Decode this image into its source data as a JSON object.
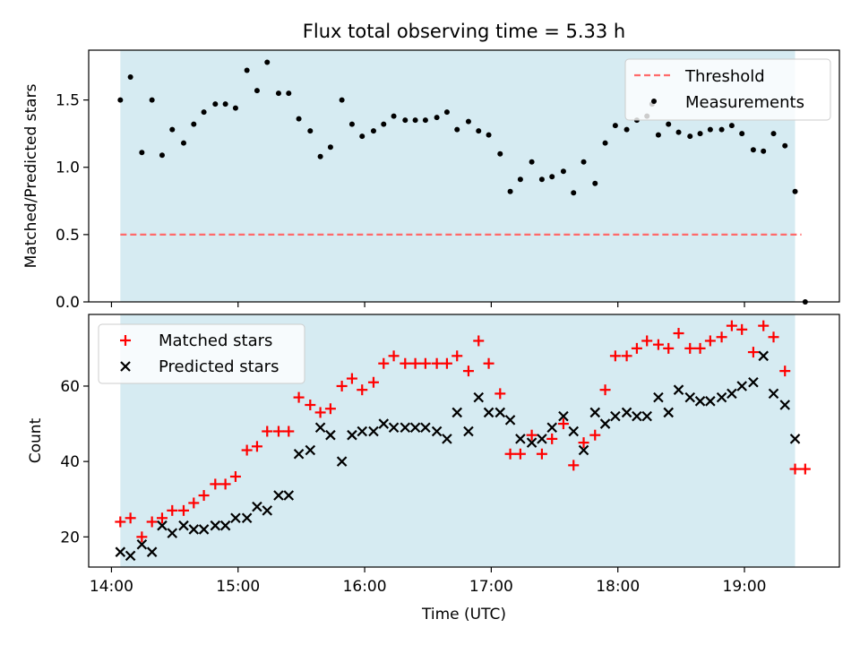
{
  "chart_data": {
    "type": "scatter",
    "title": "Flux total observing time = 5.33 h",
    "xlabel": "Time (UTC)",
    "x_unit": "hours UTC",
    "x_ticks": [
      "14:00",
      "15:00",
      "16:00",
      "17:00",
      "18:00",
      "19:00"
    ],
    "x_tick_values": [
      14,
      15,
      16,
      17,
      18,
      19
    ],
    "xlim": [
      13.82,
      19.75
    ],
    "observing_window": [
      14.07,
      19.4
    ],
    "colors": {
      "window": "#add8e6",
      "threshold": "#ff6a6a",
      "measurements": "#000000",
      "matched": "#ff0000",
      "predicted": "#000000"
    },
    "panels": [
      {
        "id": "ratio",
        "ylabel": "Matched/Predicted stars",
        "ylim": [
          0,
          1.87
        ],
        "yticks": [
          "0.0",
          "0.5",
          "1.0",
          "1.5"
        ],
        "ytick_values": [
          0,
          0.5,
          1.0,
          1.5
        ],
        "legend": {
          "position": "top-right",
          "entries": [
            "Threshold",
            "Measurements"
          ]
        },
        "threshold": {
          "name": "Threshold",
          "y": 0.5,
          "x_range": [
            14.07,
            19.45
          ]
        },
        "series": [
          {
            "name": "Measurements",
            "marker": "dot",
            "points": [
              [
                14.07,
                1.5
              ],
              [
                14.15,
                1.67
              ],
              [
                14.24,
                1.11
              ],
              [
                14.32,
                1.5
              ],
              [
                14.4,
                1.09
              ],
              [
                14.48,
                1.28
              ],
              [
                14.57,
                1.18
              ],
              [
                14.65,
                1.32
              ],
              [
                14.73,
                1.41
              ],
              [
                14.82,
                1.47
              ],
              [
                14.9,
                1.47
              ],
              [
                14.98,
                1.44
              ],
              [
                15.07,
                1.72
              ],
              [
                15.15,
                1.57
              ],
              [
                15.23,
                1.78
              ],
              [
                15.32,
                1.55
              ],
              [
                15.4,
                1.55
              ],
              [
                15.48,
                1.36
              ],
              [
                15.57,
                1.27
              ],
              [
                15.65,
                1.08
              ],
              [
                15.73,
                1.15
              ],
              [
                15.82,
                1.5
              ],
              [
                15.9,
                1.32
              ],
              [
                15.98,
                1.23
              ],
              [
                16.07,
                1.27
              ],
              [
                16.15,
                1.32
              ],
              [
                16.23,
                1.38
              ],
              [
                16.32,
                1.35
              ],
              [
                16.4,
                1.35
              ],
              [
                16.48,
                1.35
              ],
              [
                16.57,
                1.37
              ],
              [
                16.65,
                1.41
              ],
              [
                16.73,
                1.28
              ],
              [
                16.82,
                1.34
              ],
              [
                16.9,
                1.27
              ],
              [
                16.98,
                1.24
              ],
              [
                17.07,
                1.1
              ],
              [
                17.15,
                0.82
              ],
              [
                17.23,
                0.91
              ],
              [
                17.32,
                1.04
              ],
              [
                17.4,
                0.91
              ],
              [
                17.48,
                0.93
              ],
              [
                17.57,
                0.97
              ],
              [
                17.65,
                0.81
              ],
              [
                17.73,
                1.04
              ],
              [
                17.82,
                0.88
              ],
              [
                17.9,
                1.18
              ],
              [
                17.98,
                1.31
              ],
              [
                18.07,
                1.28
              ],
              [
                18.15,
                1.35
              ],
              [
                18.23,
                1.38
              ],
              [
                18.27,
                1.47
              ],
              [
                18.32,
                1.24
              ],
              [
                18.4,
                1.32
              ],
              [
                18.48,
                1.26
              ],
              [
                18.57,
                1.23
              ],
              [
                18.65,
                1.25
              ],
              [
                18.73,
                1.28
              ],
              [
                18.82,
                1.28
              ],
              [
                18.9,
                1.31
              ],
              [
                18.98,
                1.25
              ],
              [
                19.07,
                1.13
              ],
              [
                19.15,
                1.12
              ],
              [
                19.23,
                1.25
              ],
              [
                19.32,
                1.16
              ],
              [
                19.4,
                0.82
              ],
              [
                19.48,
                0.0
              ]
            ]
          }
        ]
      },
      {
        "id": "count",
        "ylabel": "Count",
        "ylim": [
          12,
          79
        ],
        "yticks": [
          "20",
          "40",
          "60"
        ],
        "ytick_values": [
          20,
          40,
          60
        ],
        "legend": {
          "position": "top-left",
          "entries": [
            "Matched stars",
            "Predicted stars"
          ]
        },
        "series": [
          {
            "name": "Matched stars",
            "marker": "plus",
            "points": [
              [
                14.07,
                24
              ],
              [
                14.15,
                25
              ],
              [
                14.24,
                20
              ],
              [
                14.32,
                24
              ],
              [
                14.4,
                25
              ],
              [
                14.48,
                27
              ],
              [
                14.57,
                27
              ],
              [
                14.65,
                29
              ],
              [
                14.73,
                31
              ],
              [
                14.82,
                34
              ],
              [
                14.9,
                34
              ],
              [
                14.98,
                36
              ],
              [
                15.07,
                43
              ],
              [
                15.15,
                44
              ],
              [
                15.23,
                48
              ],
              [
                15.32,
                48
              ],
              [
                15.4,
                48
              ],
              [
                15.48,
                57
              ],
              [
                15.57,
                55
              ],
              [
                15.65,
                53
              ],
              [
                15.73,
                54
              ],
              [
                15.82,
                60
              ],
              [
                15.9,
                62
              ],
              [
                15.98,
                59
              ],
              [
                16.07,
                61
              ],
              [
                16.15,
                66
              ],
              [
                16.23,
                68
              ],
              [
                16.32,
                66
              ],
              [
                16.4,
                66
              ],
              [
                16.48,
                66
              ],
              [
                16.57,
                66
              ],
              [
                16.65,
                66
              ],
              [
                16.73,
                68
              ],
              [
                16.82,
                64
              ],
              [
                16.9,
                72
              ],
              [
                16.98,
                66
              ],
              [
                17.07,
                58
              ],
              [
                17.15,
                42
              ],
              [
                17.23,
                42
              ],
              [
                17.32,
                47
              ],
              [
                17.4,
                42
              ],
              [
                17.48,
                46
              ],
              [
                17.57,
                50
              ],
              [
                17.65,
                39
              ],
              [
                17.73,
                45
              ],
              [
                17.82,
                47
              ],
              [
                17.9,
                59
              ],
              [
                17.98,
                68
              ],
              [
                18.07,
                68
              ],
              [
                18.15,
                70
              ],
              [
                18.23,
                72
              ],
              [
                18.32,
                71
              ],
              [
                18.4,
                70
              ],
              [
                18.48,
                74
              ],
              [
                18.57,
                70
              ],
              [
                18.65,
                70
              ],
              [
                18.73,
                72
              ],
              [
                18.82,
                73
              ],
              [
                18.9,
                76
              ],
              [
                18.98,
                75
              ],
              [
                19.07,
                69
              ],
              [
                19.15,
                76
              ],
              [
                19.23,
                73
              ],
              [
                19.32,
                64
              ],
              [
                19.4,
                38
              ],
              [
                19.48,
                38
              ]
            ]
          },
          {
            "name": "Predicted stars",
            "marker": "x",
            "points": [
              [
                14.07,
                16
              ],
              [
                14.15,
                15
              ],
              [
                14.24,
                18
              ],
              [
                14.32,
                16
              ],
              [
                14.4,
                23
              ],
              [
                14.48,
                21
              ],
              [
                14.57,
                23
              ],
              [
                14.65,
                22
              ],
              [
                14.73,
                22
              ],
              [
                14.82,
                23
              ],
              [
                14.9,
                23
              ],
              [
                14.98,
                25
              ],
              [
                15.07,
                25
              ],
              [
                15.15,
                28
              ],
              [
                15.23,
                27
              ],
              [
                15.32,
                31
              ],
              [
                15.4,
                31
              ],
              [
                15.48,
                42
              ],
              [
                15.57,
                43
              ],
              [
                15.65,
                49
              ],
              [
                15.73,
                47
              ],
              [
                15.82,
                40
              ],
              [
                15.9,
                47
              ],
              [
                15.98,
                48
              ],
              [
                16.07,
                48
              ],
              [
                16.15,
                50
              ],
              [
                16.23,
                49
              ],
              [
                16.32,
                49
              ],
              [
                16.4,
                49
              ],
              [
                16.48,
                49
              ],
              [
                16.57,
                48
              ],
              [
                16.65,
                46
              ],
              [
                16.73,
                53
              ],
              [
                16.82,
                48
              ],
              [
                16.9,
                57
              ],
              [
                16.98,
                53
              ],
              [
                17.07,
                53
              ],
              [
                17.15,
                51
              ],
              [
                17.23,
                46
              ],
              [
                17.32,
                45
              ],
              [
                17.4,
                46
              ],
              [
                17.48,
                49
              ],
              [
                17.57,
                52
              ],
              [
                17.65,
                48
              ],
              [
                17.73,
                43
              ],
              [
                17.82,
                53
              ],
              [
                17.9,
                50
              ],
              [
                17.98,
                52
              ],
              [
                18.07,
                53
              ],
              [
                18.15,
                52
              ],
              [
                18.23,
                52
              ],
              [
                18.32,
                57
              ],
              [
                18.4,
                53
              ],
              [
                18.48,
                59
              ],
              [
                18.57,
                57
              ],
              [
                18.65,
                56
              ],
              [
                18.73,
                56
              ],
              [
                18.82,
                57
              ],
              [
                18.9,
                58
              ],
              [
                18.98,
                60
              ],
              [
                19.07,
                61
              ],
              [
                19.15,
                68
              ],
              [
                19.23,
                58
              ],
              [
                19.32,
                55
              ],
              [
                19.4,
                46
              ]
            ]
          }
        ]
      }
    ]
  }
}
